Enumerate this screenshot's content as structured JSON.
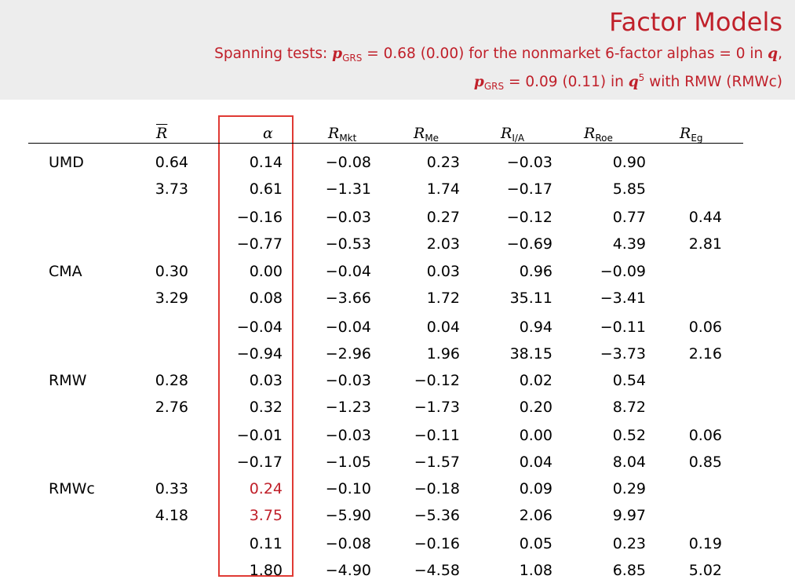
{
  "slide": {
    "title": "Factor Models",
    "subtitle_line1_pre": "Spanning tests: ",
    "subtitle_line1_p": "p",
    "subtitle_line1_sub": "GRS",
    "subtitle_line1_post": " = 0.68 (0.00) for the nonmarket 6-factor alphas = 0 in ",
    "subtitle_line1_q": "q",
    "subtitle_line1_end": ",",
    "subtitle_line2_p": "p",
    "subtitle_line2_sub": "GRS",
    "subtitle_line2_mid": " = 0.09 (0.11) in ",
    "subtitle_line2_q": "q",
    "subtitle_line2_sup": "5",
    "subtitle_line2_end": " with RMW (RMWc)"
  },
  "table": {
    "headers": {
      "rbar": "R",
      "alpha": "α",
      "mkt_main": "R",
      "mkt_sub": "Mkt",
      "me_main": "R",
      "me_sub": "Me",
      "ia_main": "R",
      "ia_sub": "I/A",
      "roe_main": "R",
      "roe_sub": "Roe",
      "eg_main": "R",
      "eg_sub": "Eg"
    },
    "groups": [
      {
        "label": "UMD",
        "rows": [
          [
            "0.64",
            "0.14",
            "−0.08",
            "0.23",
            "−0.03",
            "0.90",
            ""
          ],
          [
            "3.73",
            "0.61",
            "−1.31",
            "1.74",
            "−0.17",
            "5.85",
            ""
          ],
          [
            "",
            "−0.16",
            "−0.03",
            "0.27",
            "−0.12",
            "0.77",
            "0.44"
          ],
          [
            "",
            "−0.77",
            "−0.53",
            "2.03",
            "−0.69",
            "4.39",
            "2.81"
          ]
        ]
      },
      {
        "label": "CMA",
        "rows": [
          [
            "0.30",
            "0.00",
            "−0.04",
            "0.03",
            "0.96",
            "−0.09",
            ""
          ],
          [
            "3.29",
            "0.08",
            "−3.66",
            "1.72",
            "35.11",
            "−3.41",
            ""
          ],
          [
            "",
            "−0.04",
            "−0.04",
            "0.04",
            "0.94",
            "−0.11",
            "0.06"
          ],
          [
            "",
            "−0.94",
            "−2.96",
            "1.96",
            "38.15",
            "−3.73",
            "2.16"
          ]
        ]
      },
      {
        "label": "RMW",
        "rows": [
          [
            "0.28",
            "0.03",
            "−0.03",
            "−0.12",
            "0.02",
            "0.54",
            ""
          ],
          [
            "2.76",
            "0.32",
            "−1.23",
            "−1.73",
            "0.20",
            "8.72",
            ""
          ],
          [
            "",
            "−0.01",
            "−0.03",
            "−0.11",
            "0.00",
            "0.52",
            "0.06"
          ],
          [
            "",
            "−0.17",
            "−1.05",
            "−1.57",
            "0.04",
            "8.04",
            "0.85"
          ]
        ]
      },
      {
        "label": "RMWc",
        "rows": [
          [
            "0.33",
            "0.24",
            "−0.10",
            "−0.18",
            "0.09",
            "0.29",
            ""
          ],
          [
            "4.18",
            "3.75",
            "−5.90",
            "−5.36",
            "2.06",
            "9.97",
            ""
          ],
          [
            "",
            "0.11",
            "−0.08",
            "−0.16",
            "0.05",
            "0.23",
            "0.19"
          ],
          [
            "",
            "1.80",
            "−4.90",
            "−4.58",
            "1.08",
            "6.85",
            "5.02"
          ]
        ]
      }
    ],
    "highlight_color": "#c0202a",
    "box_color": "#e03a34"
  }
}
